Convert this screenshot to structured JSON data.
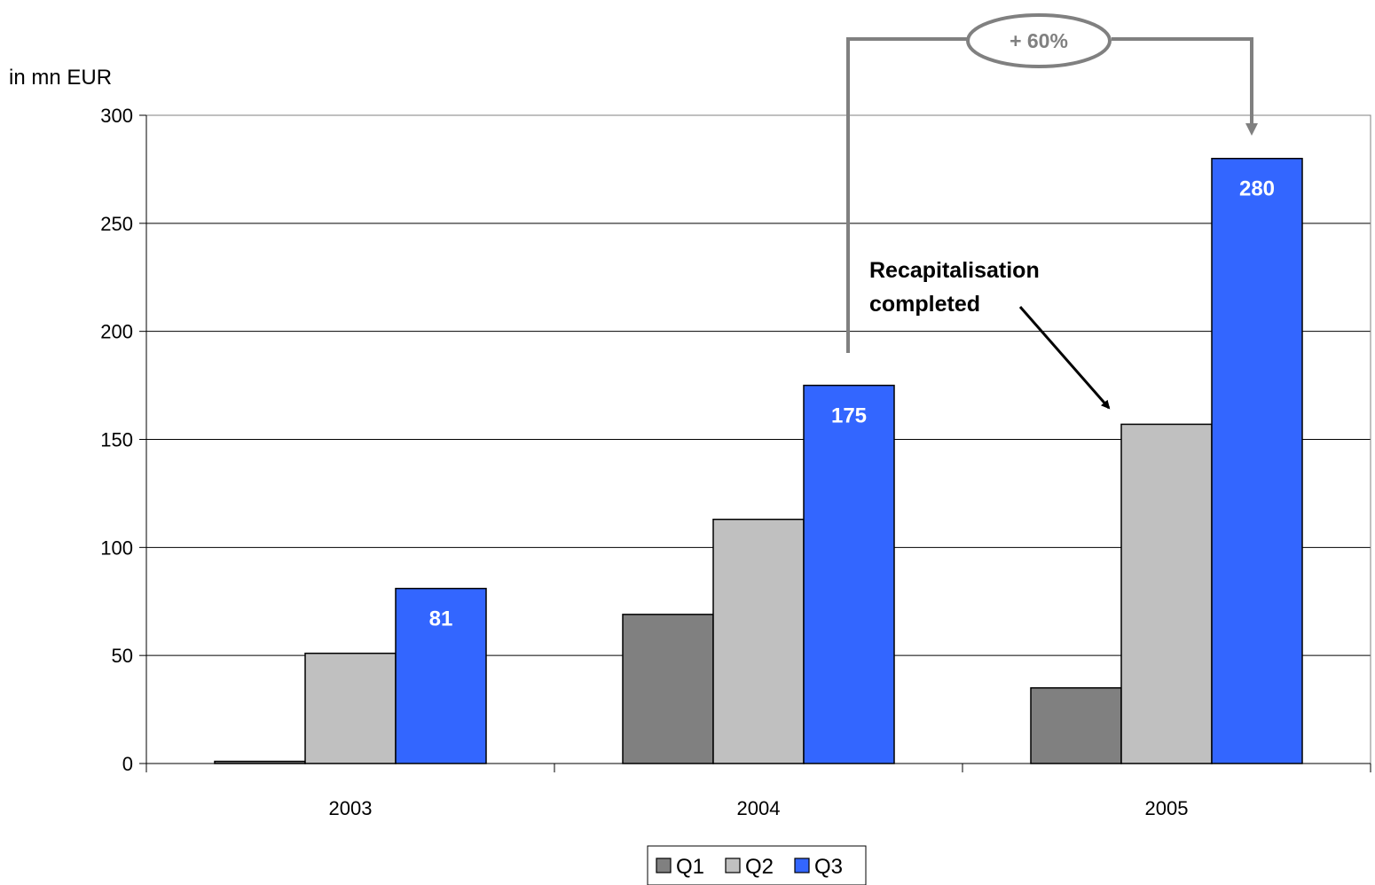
{
  "chart_data": {
    "type": "bar",
    "ylabel": "in mn EUR",
    "ylim": [
      0,
      300
    ],
    "yticks": [
      "0",
      "50",
      "100",
      "150",
      "200",
      "250",
      "300"
    ],
    "categories": [
      "2003",
      "2004",
      "2005"
    ],
    "series": [
      {
        "name": "Q1",
        "values": [
          1,
          69,
          35
        ],
        "color": "#808080"
      },
      {
        "name": "Q2",
        "values": [
          51,
          113,
          157
        ],
        "color": "#c0c0c0"
      },
      {
        "name": "Q3",
        "values": [
          81,
          175,
          280
        ],
        "color": "#3366ff"
      }
    ],
    "data_labels": {
      "series": "Q3",
      "values": [
        "81",
        "175",
        "280"
      ]
    },
    "annotations": {
      "recap_line1": "Recapitalisation",
      "recap_line2": "completed",
      "change": "+ 60%"
    },
    "grid": true,
    "legend_position": "bottom"
  }
}
